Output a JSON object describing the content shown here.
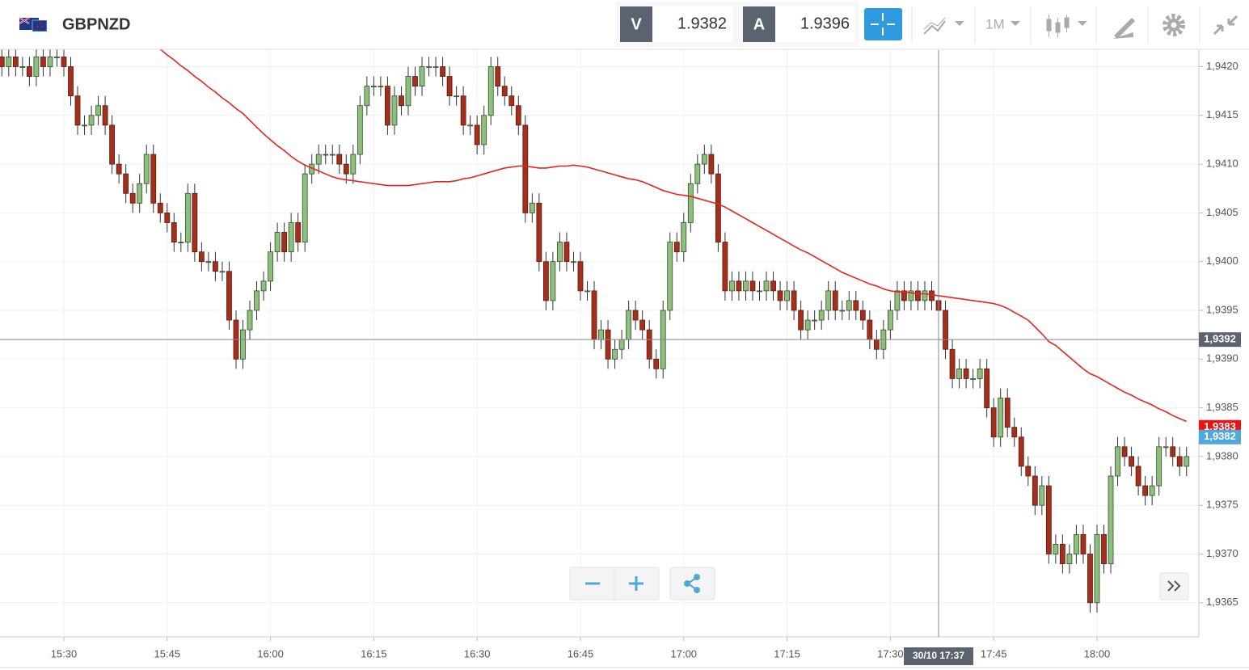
{
  "header": {
    "symbol": "GBPNZD",
    "bid_label": "V",
    "bid": "1.9382",
    "ask_label": "A",
    "ask": "1.9396",
    "timeframe": "1M"
  },
  "chart_data": {
    "type": "candlestick",
    "x": [
      "15:21",
      "15:22",
      "15:23",
      "15:24",
      "15:25",
      "15:26",
      "15:27",
      "15:28",
      "15:29",
      "15:30",
      "15:31",
      "15:32",
      "15:33",
      "15:34",
      "15:35",
      "15:36",
      "15:37",
      "15:38",
      "15:39",
      "15:40",
      "15:41",
      "15:42",
      "15:43",
      "15:44",
      "15:45",
      "15:46",
      "15:47",
      "15:48",
      "15:49",
      "15:50",
      "15:51",
      "15:52",
      "15:53",
      "15:54",
      "15:55",
      "15:56",
      "15:57",
      "15:58",
      "15:59",
      "16:00",
      "16:01",
      "16:02",
      "16:03",
      "16:04",
      "16:05",
      "16:06",
      "16:07",
      "16:08",
      "16:09",
      "16:10",
      "16:11",
      "16:12",
      "16:13",
      "16:14",
      "16:15",
      "16:16",
      "16:17",
      "16:18",
      "16:19",
      "16:20",
      "16:21",
      "16:22",
      "16:23",
      "16:24",
      "16:25",
      "16:26",
      "16:27",
      "16:28",
      "16:29",
      "16:30",
      "16:31",
      "16:32",
      "16:33",
      "16:34",
      "16:35",
      "16:36",
      "16:37",
      "16:38",
      "16:39",
      "16:40",
      "16:41",
      "16:42",
      "16:43",
      "16:44",
      "16:45",
      "16:46",
      "16:47",
      "16:48",
      "16:49",
      "16:50",
      "16:51",
      "16:52",
      "16:53",
      "16:54",
      "16:55",
      "16:56",
      "16:57",
      "16:58",
      "16:59",
      "17:00",
      "17:01",
      "17:02",
      "17:03",
      "17:04",
      "17:05",
      "17:06",
      "17:07",
      "17:08",
      "17:09",
      "17:10",
      "17:11",
      "17:12",
      "17:13",
      "17:14",
      "17:15",
      "17:16",
      "17:17",
      "17:18",
      "17:19",
      "17:20",
      "17:21",
      "17:22",
      "17:23",
      "17:24",
      "17:25",
      "17:26",
      "17:27",
      "17:28",
      "17:29",
      "17:30",
      "17:31",
      "17:32",
      "17:33",
      "17:34",
      "17:35",
      "17:36",
      "17:37",
      "17:38",
      "17:39",
      "17:40",
      "17:41",
      "17:42",
      "17:43",
      "17:44",
      "17:45",
      "17:46",
      "17:47",
      "17:48",
      "17:49",
      "17:50",
      "17:51",
      "17:52",
      "17:53",
      "17:54",
      "17:55",
      "17:56",
      "17:57",
      "17:58",
      "17:59",
      "18:00",
      "18:01",
      "18:02",
      "18:03",
      "18:04",
      "18:05",
      "18:06",
      "18:07",
      "18:08",
      "18:09",
      "18:10",
      "18:11",
      "18:12",
      "18:13"
    ],
    "open": [
      1.9421,
      1.942,
      1.9421,
      1.942,
      1.942,
      1.9419,
      1.9421,
      1.942,
      1.9421,
      1.9421,
      1.942,
      1.9417,
      1.9414,
      1.9414,
      1.9415,
      1.9416,
      1.9414,
      1.941,
      1.9409,
      1.9407,
      1.9406,
      1.9408,
      1.9411,
      1.9406,
      1.9405,
      1.9404,
      1.9402,
      1.9402,
      1.9407,
      1.9401,
      1.94,
      1.94,
      1.9399,
      1.9399,
      1.9394,
      1.939,
      1.9393,
      1.9395,
      1.9397,
      1.9398,
      1.9401,
      1.9403,
      1.9401,
      1.9404,
      1.9402,
      1.9409,
      1.941,
      1.9411,
      1.9411,
      1.9411,
      1.941,
      1.9409,
      1.9411,
      1.9416,
      1.9418,
      1.9418,
      1.9418,
      1.9414,
      1.9417,
      1.9416,
      1.9419,
      1.9418,
      1.942,
      1.942,
      1.942,
      1.9419,
      1.9417,
      1.9417,
      1.9414,
      1.9414,
      1.9412,
      1.9415,
      1.942,
      1.9418,
      1.9417,
      1.9416,
      1.9414,
      1.9405,
      1.9406,
      1.94,
      1.9396,
      1.94,
      1.9402,
      1.94,
      1.94,
      1.9397,
      1.9397,
      1.9392,
      1.9393,
      1.939,
      1.9391,
      1.9392,
      1.9395,
      1.9394,
      1.9393,
      1.939,
      1.9389,
      1.9395,
      1.9402,
      1.9401,
      1.9404,
      1.9408,
      1.941,
      1.9411,
      1.9409,
      1.9402,
      1.9397,
      1.9398,
      1.9397,
      1.9398,
      1.9397,
      1.9397,
      1.9398,
      1.9397,
      1.9396,
      1.9397,
      1.9395,
      1.9393,
      1.9394,
      1.9394,
      1.9395,
      1.9397,
      1.9395,
      1.9395,
      1.9396,
      1.9395,
      1.9394,
      1.9392,
      1.9391,
      1.9393,
      1.9395,
      1.9397,
      1.9396,
      1.9397,
      1.9396,
      1.9397,
      1.9396,
      1.9395,
      1.9391,
      1.9388,
      1.9389,
      1.9388,
      1.9388,
      1.9389,
      1.9385,
      1.9382,
      1.9386,
      1.9383,
      1.9382,
      1.9379,
      1.9378,
      1.9375,
      1.9377,
      1.937,
      1.9371,
      1.9369,
      1.937,
      1.9372,
      1.937,
      1.9365,
      1.9372,
      1.9369,
      1.9378,
      1.9381,
      1.938,
      1.9379,
      1.9377,
      1.9376,
      1.9377,
      1.9381,
      1.9381,
      1.938,
      1.9379
    ],
    "high": [
      1.9422,
      1.9422,
      1.9422,
      1.9421,
      1.9421,
      1.9422,
      1.9422,
      1.9422,
      1.9422,
      1.9422,
      1.9421,
      1.9418,
      1.9415,
      1.9416,
      1.9417,
      1.9417,
      1.9415,
      1.9411,
      1.941,
      1.9408,
      1.9409,
      1.9412,
      1.9412,
      1.9407,
      1.9406,
      1.9405,
      1.9403,
      1.9408,
      1.9408,
      1.9402,
      1.9401,
      1.9401,
      1.94,
      1.94,
      1.9395,
      1.9394,
      1.9396,
      1.9398,
      1.9399,
      1.9402,
      1.9404,
      1.9404,
      1.9405,
      1.9405,
      1.941,
      1.9411,
      1.9412,
      1.9412,
      1.9412,
      1.9412,
      1.9411,
      1.9412,
      1.9417,
      1.9419,
      1.9419,
      1.9419,
      1.9419,
      1.9418,
      1.9418,
      1.942,
      1.942,
      1.9421,
      1.9421,
      1.9421,
      1.9421,
      1.942,
      1.9418,
      1.9418,
      1.9415,
      1.9415,
      1.9416,
      1.9421,
      1.9421,
      1.9419,
      1.9418,
      1.9417,
      1.9415,
      1.9407,
      1.9407,
      1.9401,
      1.9401,
      1.9403,
      1.9403,
      1.9401,
      1.9401,
      1.9398,
      1.9398,
      1.9394,
      1.9394,
      1.9392,
      1.9393,
      1.9396,
      1.9396,
      1.9395,
      1.9394,
      1.9391,
      1.9396,
      1.9403,
      1.9403,
      1.9405,
      1.9409,
      1.9411,
      1.9412,
      1.9412,
      1.941,
      1.9403,
      1.9399,
      1.9399,
      1.9399,
      1.9399,
      1.9398,
      1.9399,
      1.9399,
      1.9398,
      1.9398,
      1.9398,
      1.9396,
      1.9395,
      1.9395,
      1.9396,
      1.9398,
      1.9398,
      1.9396,
      1.9397,
      1.9397,
      1.9396,
      1.9395,
      1.9393,
      1.9394,
      1.9396,
      1.9398,
      1.9398,
      1.9398,
      1.9398,
      1.9398,
      1.9398,
      1.9397,
      1.9396,
      1.9392,
      1.939,
      1.939,
      1.9389,
      1.939,
      1.939,
      1.9386,
      1.9387,
      1.9387,
      1.9384,
      1.9383,
      1.938,
      1.9379,
      1.9378,
      1.9378,
      1.9372,
      1.9372,
      1.9371,
      1.9373,
      1.9373,
      1.9371,
      1.9373,
      1.9373,
      1.9379,
      1.9382,
      1.9382,
      1.9381,
      1.938,
      1.9378,
      1.9378,
      1.9382,
      1.9382,
      1.9382,
      1.9381,
      1.9381
    ],
    "low": [
      1.9419,
      1.9419,
      1.9419,
      1.9419,
      1.9418,
      1.9418,
      1.9419,
      1.9419,
      1.942,
      1.9419,
      1.9416,
      1.9413,
      1.9413,
      1.9413,
      1.9414,
      1.9413,
      1.9409,
      1.9408,
      1.9406,
      1.9405,
      1.9405,
      1.9407,
      1.9405,
      1.9404,
      1.9403,
      1.9401,
      1.9401,
      1.9401,
      1.94,
      1.9399,
      1.9399,
      1.9398,
      1.9398,
      1.9393,
      1.9389,
      1.9389,
      1.9392,
      1.9394,
      1.9396,
      1.9397,
      1.94,
      1.94,
      1.94,
      1.9401,
      1.9401,
      1.9408,
      1.9409,
      1.941,
      1.941,
      1.9409,
      1.9408,
      1.9408,
      1.941,
      1.9415,
      1.9417,
      1.9417,
      1.9413,
      1.9413,
      1.9415,
      1.9415,
      1.9417,
      1.9417,
      1.9419,
      1.9419,
      1.9418,
      1.9416,
      1.9416,
      1.9413,
      1.9413,
      1.9411,
      1.9411,
      1.9414,
      1.9417,
      1.9416,
      1.9415,
      1.9413,
      1.9404,
      1.9404,
      1.9399,
      1.9395,
      1.9395,
      1.9399,
      1.9399,
      1.9399,
      1.9396,
      1.9396,
      1.9391,
      1.9391,
      1.9389,
      1.9389,
      1.939,
      1.9391,
      1.9393,
      1.9392,
      1.9389,
      1.9388,
      1.9388,
      1.9394,
      1.94,
      1.94,
      1.9403,
      1.9407,
      1.9409,
      1.9408,
      1.9401,
      1.9396,
      1.9396,
      1.9396,
      1.9396,
      1.9396,
      1.9396,
      1.9396,
      1.9396,
      1.9395,
      1.9395,
      1.9394,
      1.9392,
      1.9392,
      1.9393,
      1.9393,
      1.9394,
      1.9394,
      1.9394,
      1.9394,
      1.9394,
      1.9393,
      1.9391,
      1.939,
      1.939,
      1.9392,
      1.9394,
      1.9395,
      1.9395,
      1.9395,
      1.9395,
      1.9395,
      1.9394,
      1.939,
      1.9387,
      1.9387,
      1.9387,
      1.9387,
      1.9387,
      1.9384,
      1.9381,
      1.9381,
      1.9382,
      1.9381,
      1.9378,
      1.9377,
      1.9374,
      1.9374,
      1.9369,
      1.9369,
      1.9368,
      1.9368,
      1.9369,
      1.9369,
      1.9364,
      1.9364,
      1.9368,
      1.9368,
      1.9377,
      1.9379,
      1.9378,
      1.9376,
      1.9375,
      1.9375,
      1.9376,
      1.938,
      1.9379,
      1.9378,
      1.9378
    ],
    "close": [
      1.942,
      1.9421,
      1.942,
      1.942,
      1.9419,
      1.9421,
      1.942,
      1.9421,
      1.9421,
      1.942,
      1.9417,
      1.9414,
      1.9414,
      1.9415,
      1.9416,
      1.9414,
      1.941,
      1.9409,
      1.9407,
      1.9406,
      1.9408,
      1.9411,
      1.9406,
      1.9405,
      1.9404,
      1.9402,
      1.9402,
      1.9407,
      1.9401,
      1.94,
      1.94,
      1.9399,
      1.9399,
      1.9394,
      1.939,
      1.9393,
      1.9395,
      1.9397,
      1.9398,
      1.9401,
      1.9403,
      1.9401,
      1.9404,
      1.9402,
      1.9409,
      1.941,
      1.9411,
      1.9411,
      1.9411,
      1.941,
      1.9409,
      1.9411,
      1.9416,
      1.9418,
      1.9418,
      1.9418,
      1.9414,
      1.9417,
      1.9416,
      1.9419,
      1.9418,
      1.942,
      1.942,
      1.942,
      1.9419,
      1.9417,
      1.9417,
      1.9414,
      1.9414,
      1.9412,
      1.9415,
      1.942,
      1.9418,
      1.9417,
      1.9416,
      1.9414,
      1.9405,
      1.9406,
      1.94,
      1.9396,
      1.94,
      1.9402,
      1.94,
      1.94,
      1.9397,
      1.9397,
      1.9392,
      1.9393,
      1.939,
      1.9391,
      1.9392,
      1.9395,
      1.9394,
      1.9393,
      1.939,
      1.9389,
      1.9395,
      1.9402,
      1.9401,
      1.9404,
      1.9408,
      1.941,
      1.9411,
      1.9409,
      1.9402,
      1.9397,
      1.9398,
      1.9397,
      1.9398,
      1.9397,
      1.9397,
      1.9398,
      1.9397,
      1.9396,
      1.9397,
      1.9395,
      1.9393,
      1.9394,
      1.9394,
      1.9395,
      1.9397,
      1.9395,
      1.9395,
      1.9396,
      1.9395,
      1.9394,
      1.9392,
      1.9391,
      1.9393,
      1.9395,
      1.9397,
      1.9396,
      1.9397,
      1.9396,
      1.9397,
      1.9396,
      1.9395,
      1.9391,
      1.9388,
      1.9389,
      1.9388,
      1.9388,
      1.9389,
      1.9385,
      1.9382,
      1.9386,
      1.9383,
      1.9382,
      1.9379,
      1.9378,
      1.9375,
      1.9377,
      1.937,
      1.9371,
      1.9369,
      1.937,
      1.9372,
      1.937,
      1.9365,
      1.9372,
      1.9369,
      1.9378,
      1.9381,
      1.938,
      1.9379,
      1.9377,
      1.9376,
      1.9377,
      1.9381,
      1.9381,
      1.938,
      1.9379,
      1.938
    ],
    "color_up": "#8fbf7f",
    "color_down": "#a3301c",
    "moving_average": {
      "color": "#e8231e",
      "values": [
        null,
        null,
        null,
        null,
        null,
        null,
        null,
        null,
        null,
        null,
        null,
        null,
        null,
        null,
        null,
        null,
        null,
        null,
        null,
        null,
        null,
        null,
        null,
        1.94218,
        1.94212,
        1.94207,
        1.94201,
        1.94196,
        1.9419,
        1.94185,
        1.94179,
        1.94174,
        1.94168,
        1.94163,
        1.94157,
        1.94152,
        1.94145,
        1.94138,
        1.94131,
        1.94125,
        1.94119,
        1.94114,
        1.94108,
        1.94103,
        1.94099,
        1.94096,
        1.94093,
        1.9409,
        1.94087,
        1.94085,
        1.94084,
        1.94083,
        1.94082,
        1.94081,
        1.9408,
        1.94079,
        1.94078,
        1.94078,
        1.94078,
        1.94078,
        1.94079,
        1.9408,
        1.94081,
        1.94082,
        1.94082,
        1.94082,
        1.94083,
        1.94085,
        1.94086,
        1.94088,
        1.9409,
        1.94092,
        1.94094,
        1.94096,
        1.94097,
        1.94098,
        1.94098,
        1.94097,
        1.94096,
        1.94096,
        1.94097,
        1.94098,
        1.94098,
        1.94099,
        1.94098,
        1.94097,
        1.94095,
        1.94093,
        1.94091,
        1.94089,
        1.94087,
        1.94085,
        1.94084,
        1.94082,
        1.94079,
        1.94076,
        1.94073,
        1.94071,
        1.94069,
        1.94068,
        1.94067,
        1.94065,
        1.94063,
        1.94061,
        1.94059,
        1.94056,
        1.94052,
        1.94048,
        1.94044,
        1.9404,
        1.94036,
        1.94032,
        1.94028,
        1.94024,
        1.9402,
        1.94016,
        1.94012,
        1.94009,
        1.94005,
        1.94001,
        1.93997,
        1.93993,
        1.93989,
        1.93986,
        1.93983,
        1.9398,
        1.93977,
        1.93975,
        1.93972,
        1.9397,
        1.93969,
        1.93969,
        1.93968,
        1.93967,
        1.93967,
        1.93966,
        1.93965,
        1.93964,
        1.93963,
        1.93962,
        1.93961,
        1.9396,
        1.93959,
        1.93958,
        1.93957,
        1.93955,
        1.93952,
        1.93948,
        1.93944,
        1.9394,
        1.93933,
        1.93926,
        1.93918,
        1.93914,
        1.93908,
        1.93902,
        1.93896,
        1.9389,
        1.93885,
        1.93882,
        1.93878,
        1.93874,
        1.9387,
        1.93866,
        1.93863,
        1.93859,
        1.93856,
        1.93853,
        1.93849,
        1.93846,
        1.93842,
        1.93839,
        1.93836
      ]
    },
    "ylim": [
      1.93615,
      1.94217
    ],
    "yticks": [
      {
        "value": 1.9365,
        "label": "1,9365"
      },
      {
        "value": 1.937,
        "label": "1,9370"
      },
      {
        "value": 1.9375,
        "label": "1,9375"
      },
      {
        "value": 1.938,
        "label": "1,9380"
      },
      {
        "value": 1.9385,
        "label": "1,9385"
      },
      {
        "value": 1.939,
        "label": "1,9390"
      },
      {
        "value": 1.9395,
        "label": "1,9395"
      },
      {
        "value": 1.94,
        "label": "1,9400"
      },
      {
        "value": 1.9405,
        "label": "1,9405"
      },
      {
        "value": 1.941,
        "label": "1,9410"
      },
      {
        "value": 1.9415,
        "label": "1,9415"
      },
      {
        "value": 1.942,
        "label": "1,9420"
      }
    ],
    "xticks": [
      "15:30",
      "15:45",
      "16:00",
      "16:15",
      "16:30",
      "16:45",
      "17:00",
      "17:15",
      "17:30",
      "17:45",
      "18:00"
    ],
    "grid": true,
    "crosshair": {
      "x_label": "30/10 17:37",
      "y": {
        "value": 1.9392,
        "label": "1,9392"
      }
    },
    "price_markers": [
      {
        "value": 1.9383,
        "label": "1,9383",
        "color": "#ee1111"
      },
      {
        "value": 1.9382,
        "label": "1,9382",
        "color": "#4ea8dc"
      }
    ]
  }
}
